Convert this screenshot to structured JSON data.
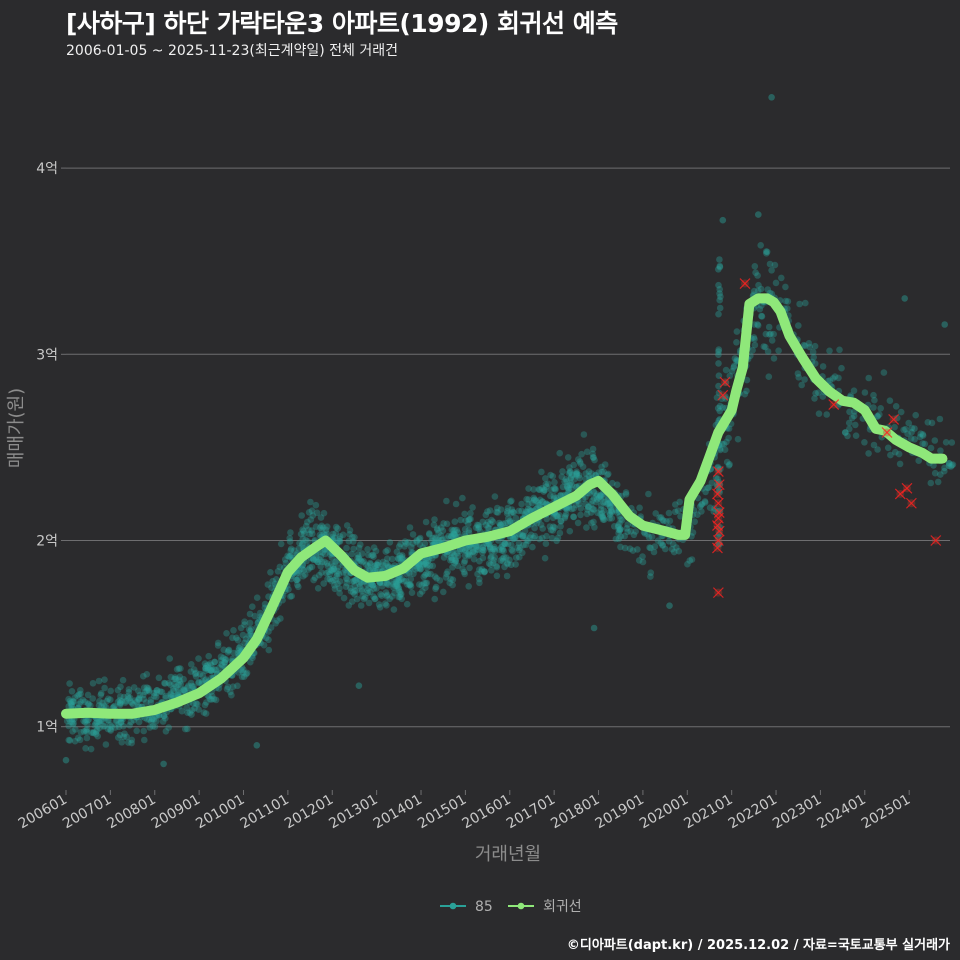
{
  "title": "[사하구] 하단 가락타운3 아파트(1992) 회귀선 예측",
  "subtitle": "2006-01-05 ~ 2025-11-23(최근계약일) 전체 거래건",
  "footer": "©디아파트(dapt.kr) / 2025.12.02 / 자료=국토교통부 실거래가",
  "colors": {
    "background": "#2b2b2d",
    "grid": "#6e6e70",
    "scatter": "#2aa198",
    "regression": "#8fe87a",
    "cancelled": "#ff2020"
  },
  "chart_data": {
    "type": "scatter",
    "xlabel": "거래년월",
    "ylabel": "매매가(원)",
    "xlim": [
      2006.0,
      2025.92
    ],
    "ylim": [
      0.66,
      4.5
    ],
    "y_unit": "억",
    "y_ticks": [
      {
        "value": 1,
        "label": "1억"
      },
      {
        "value": 2,
        "label": "2억"
      },
      {
        "value": 3,
        "label": "3억"
      },
      {
        "value": 4,
        "label": "4억"
      }
    ],
    "x_ticks": [
      {
        "value": 2006.0,
        "label": "200601"
      },
      {
        "value": 2007.0,
        "label": "200701"
      },
      {
        "value": 2008.0,
        "label": "200801"
      },
      {
        "value": 2009.0,
        "label": "200901"
      },
      {
        "value": 2010.0,
        "label": "201001"
      },
      {
        "value": 2011.0,
        "label": "201101"
      },
      {
        "value": 2012.0,
        "label": "201201"
      },
      {
        "value": 2013.0,
        "label": "201301"
      },
      {
        "value": 2014.0,
        "label": "201401"
      },
      {
        "value": 2015.0,
        "label": "201501"
      },
      {
        "value": 2016.0,
        "label": "201601"
      },
      {
        "value": 2017.0,
        "label": "201701"
      },
      {
        "value": 2018.0,
        "label": "201801"
      },
      {
        "value": 2019.0,
        "label": "201901"
      },
      {
        "value": 2020.0,
        "label": "202001"
      },
      {
        "value": 2021.0,
        "label": "202101"
      },
      {
        "value": 2022.0,
        "label": "202201"
      },
      {
        "value": 2023.0,
        "label": "202301"
      },
      {
        "value": 2024.0,
        "label": "202401"
      },
      {
        "value": 2025.0,
        "label": "202501"
      }
    ],
    "series": [
      {
        "name": "85",
        "kind": "scatter",
        "trend": [
          [
            2006.0,
            1.05
          ],
          [
            2007.0,
            1.07
          ],
          [
            2008.0,
            1.12
          ],
          [
            2009.0,
            1.22
          ],
          [
            2010.0,
            1.38
          ],
          [
            2010.5,
            1.55
          ],
          [
            2011.0,
            1.85
          ],
          [
            2011.5,
            1.98
          ],
          [
            2012.0,
            1.92
          ],
          [
            2012.5,
            1.85
          ],
          [
            2013.0,
            1.8
          ],
          [
            2013.5,
            1.82
          ],
          [
            2014.0,
            1.9
          ],
          [
            2015.0,
            1.98
          ],
          [
            2016.0,
            2.03
          ],
          [
            2017.0,
            2.18
          ],
          [
            2017.8,
            2.32
          ],
          [
            2018.5,
            2.12
          ],
          [
            2019.0,
            2.05
          ],
          [
            2019.5,
            2.02
          ],
          [
            2020.0,
            2.05
          ],
          [
            2020.5,
            2.3
          ],
          [
            2021.0,
            2.75
          ],
          [
            2021.3,
            3.05
          ],
          [
            2021.6,
            3.3
          ],
          [
            2022.0,
            3.28
          ],
          [
            2022.5,
            3.05
          ],
          [
            2023.0,
            2.85
          ],
          [
            2023.5,
            2.75
          ],
          [
            2024.0,
            2.7
          ],
          [
            2024.5,
            2.6
          ],
          [
            2025.0,
            2.55
          ],
          [
            2025.7,
            2.45
          ]
        ],
        "outliers": [
          [
            2021.9,
            4.38
          ],
          [
            2020.8,
            3.72
          ],
          [
            2021.6,
            3.75
          ],
          [
            2024.9,
            3.3
          ],
          [
            2025.8,
            3.16
          ],
          [
            2012.6,
            1.22
          ],
          [
            2017.9,
            1.53
          ],
          [
            2006.0,
            0.82
          ],
          [
            2008.2,
            0.8
          ],
          [
            2010.3,
            0.9
          ],
          [
            2019.6,
            1.65
          ]
        ]
      },
      {
        "name": "회귀선",
        "kind": "line",
        "x": [
          2006.0,
          2006.5,
          2007.0,
          2007.5,
          2008.0,
          2008.5,
          2009.0,
          2009.5,
          2010.0,
          2010.3,
          2010.6,
          2011.0,
          2011.3,
          2011.6,
          2011.85,
          2012.2,
          2012.5,
          2012.8,
          2013.2,
          2013.6,
          2014.0,
          2014.5,
          2015.0,
          2015.5,
          2016.0,
          2016.5,
          2017.0,
          2017.5,
          2017.8,
          2018.0,
          2018.3,
          2018.7,
          2019.0,
          2019.5,
          2019.8,
          2019.95,
          2020.05,
          2020.3,
          2020.5,
          2020.7,
          2021.0,
          2021.1,
          2021.25,
          2021.4,
          2021.6,
          2021.8,
          2021.95,
          2022.1,
          2022.3,
          2022.6,
          2022.9,
          2023.2,
          2023.5,
          2023.75,
          2024.0,
          2024.25,
          2024.45,
          2024.7,
          2025.0,
          2025.3,
          2025.5,
          2025.75
        ],
        "values": [
          1.07,
          1.075,
          1.07,
          1.07,
          1.09,
          1.13,
          1.18,
          1.26,
          1.37,
          1.47,
          1.62,
          1.83,
          1.91,
          1.96,
          2.0,
          1.92,
          1.84,
          1.8,
          1.81,
          1.85,
          1.93,
          1.96,
          2.0,
          2.02,
          2.05,
          2.12,
          2.18,
          2.24,
          2.3,
          2.32,
          2.25,
          2.13,
          2.08,
          2.05,
          2.03,
          2.03,
          2.22,
          2.32,
          2.45,
          2.58,
          2.7,
          2.8,
          2.93,
          3.27,
          3.3,
          3.3,
          3.28,
          3.23,
          3.1,
          2.98,
          2.87,
          2.8,
          2.75,
          2.74,
          2.7,
          2.6,
          2.59,
          2.54,
          2.5,
          2.47,
          2.44,
          2.44
        ]
      }
    ],
    "cancelled_marks": [
      [
        2020.7,
        1.72
      ],
      [
        2020.68,
        1.96
      ],
      [
        2020.7,
        2.0
      ],
      [
        2020.72,
        2.05
      ],
      [
        2020.68,
        2.08
      ],
      [
        2020.7,
        2.12
      ],
      [
        2020.72,
        2.15
      ],
      [
        2020.7,
        2.2
      ],
      [
        2020.68,
        2.25
      ],
      [
        2020.72,
        2.3
      ],
      [
        2020.7,
        2.37
      ],
      [
        2020.8,
        2.78
      ],
      [
        2020.85,
        2.85
      ],
      [
        2021.3,
        3.38
      ],
      [
        2023.3,
        2.73
      ],
      [
        2024.5,
        2.58
      ],
      [
        2024.65,
        2.65
      ],
      [
        2024.8,
        2.25
      ],
      [
        2024.95,
        2.28
      ],
      [
        2025.05,
        2.2
      ],
      [
        2025.6,
        2.0
      ]
    ],
    "legend": [
      {
        "label": "85",
        "kind": "scatter"
      },
      {
        "label": "회귀선",
        "kind": "line"
      }
    ]
  }
}
